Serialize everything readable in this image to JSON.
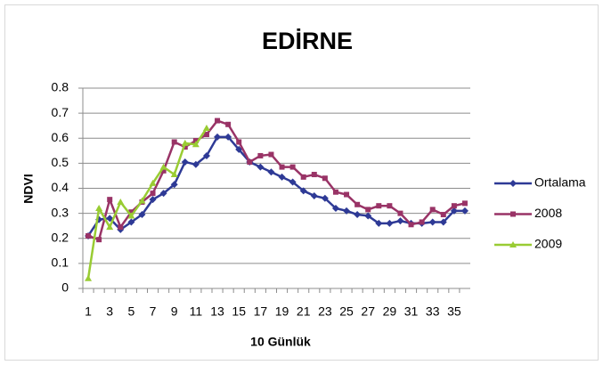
{
  "chart_data": {
    "type": "line",
    "title": "EDİRNE",
    "x_label": "10 Günlük",
    "y_label": "NDVI",
    "categories": [
      1,
      null,
      3,
      null,
      5,
      null,
      7,
      null,
      9,
      null,
      11,
      null,
      13,
      null,
      15,
      null,
      17,
      null,
      19,
      null,
      21,
      null,
      23,
      null,
      25,
      null,
      27,
      null,
      29,
      null,
      31,
      null,
      33,
      null,
      35,
      null
    ],
    "series": [
      {
        "name": "Ortalama",
        "color": "#2e3a96",
        "marker": "diamond",
        "values": [
          0.21,
          0.275,
          0.28,
          0.235,
          0.265,
          0.295,
          0.355,
          0.38,
          0.415,
          0.505,
          0.495,
          0.53,
          0.605,
          0.605,
          0.555,
          0.505,
          0.485,
          0.465,
          0.445,
          0.425,
          0.39,
          0.37,
          0.36,
          0.32,
          0.31,
          0.295,
          0.29,
          0.26,
          0.26,
          0.27,
          0.26,
          0.26,
          0.265,
          0.265,
          0.31,
          0.31
        ]
      },
      {
        "name": "2008",
        "color": "#993366",
        "marker": "square",
        "values": [
          0.21,
          0.195,
          0.355,
          0.245,
          0.305,
          0.345,
          0.38,
          0.47,
          0.585,
          0.565,
          0.59,
          0.615,
          0.67,
          0.655,
          0.585,
          0.505,
          0.53,
          0.535,
          0.485,
          0.485,
          0.445,
          0.455,
          0.44,
          0.385,
          0.375,
          0.335,
          0.315,
          0.33,
          0.33,
          0.3,
          0.255,
          0.265,
          0.315,
          0.295,
          0.33,
          0.34
        ]
      },
      {
        "name": "2009",
        "color": "#99cc33",
        "marker": "triangle",
        "values": [
          0.04,
          0.32,
          0.245,
          0.345,
          0.29,
          0.35,
          0.42,
          0.485,
          0.455,
          0.58,
          0.575,
          0.64,
          null,
          null,
          null,
          null,
          null,
          null,
          null,
          null,
          null,
          null,
          null,
          null,
          null,
          null,
          null,
          null,
          null,
          null,
          null,
          null,
          null,
          null,
          null,
          null
        ]
      }
    ],
    "ylim": [
      0,
      0.8
    ],
    "yticks": [
      0,
      0.1,
      0.2,
      0.3,
      0.4,
      0.5,
      0.6,
      0.7,
      0.8
    ],
    "grid": true,
    "legend": "right"
  }
}
